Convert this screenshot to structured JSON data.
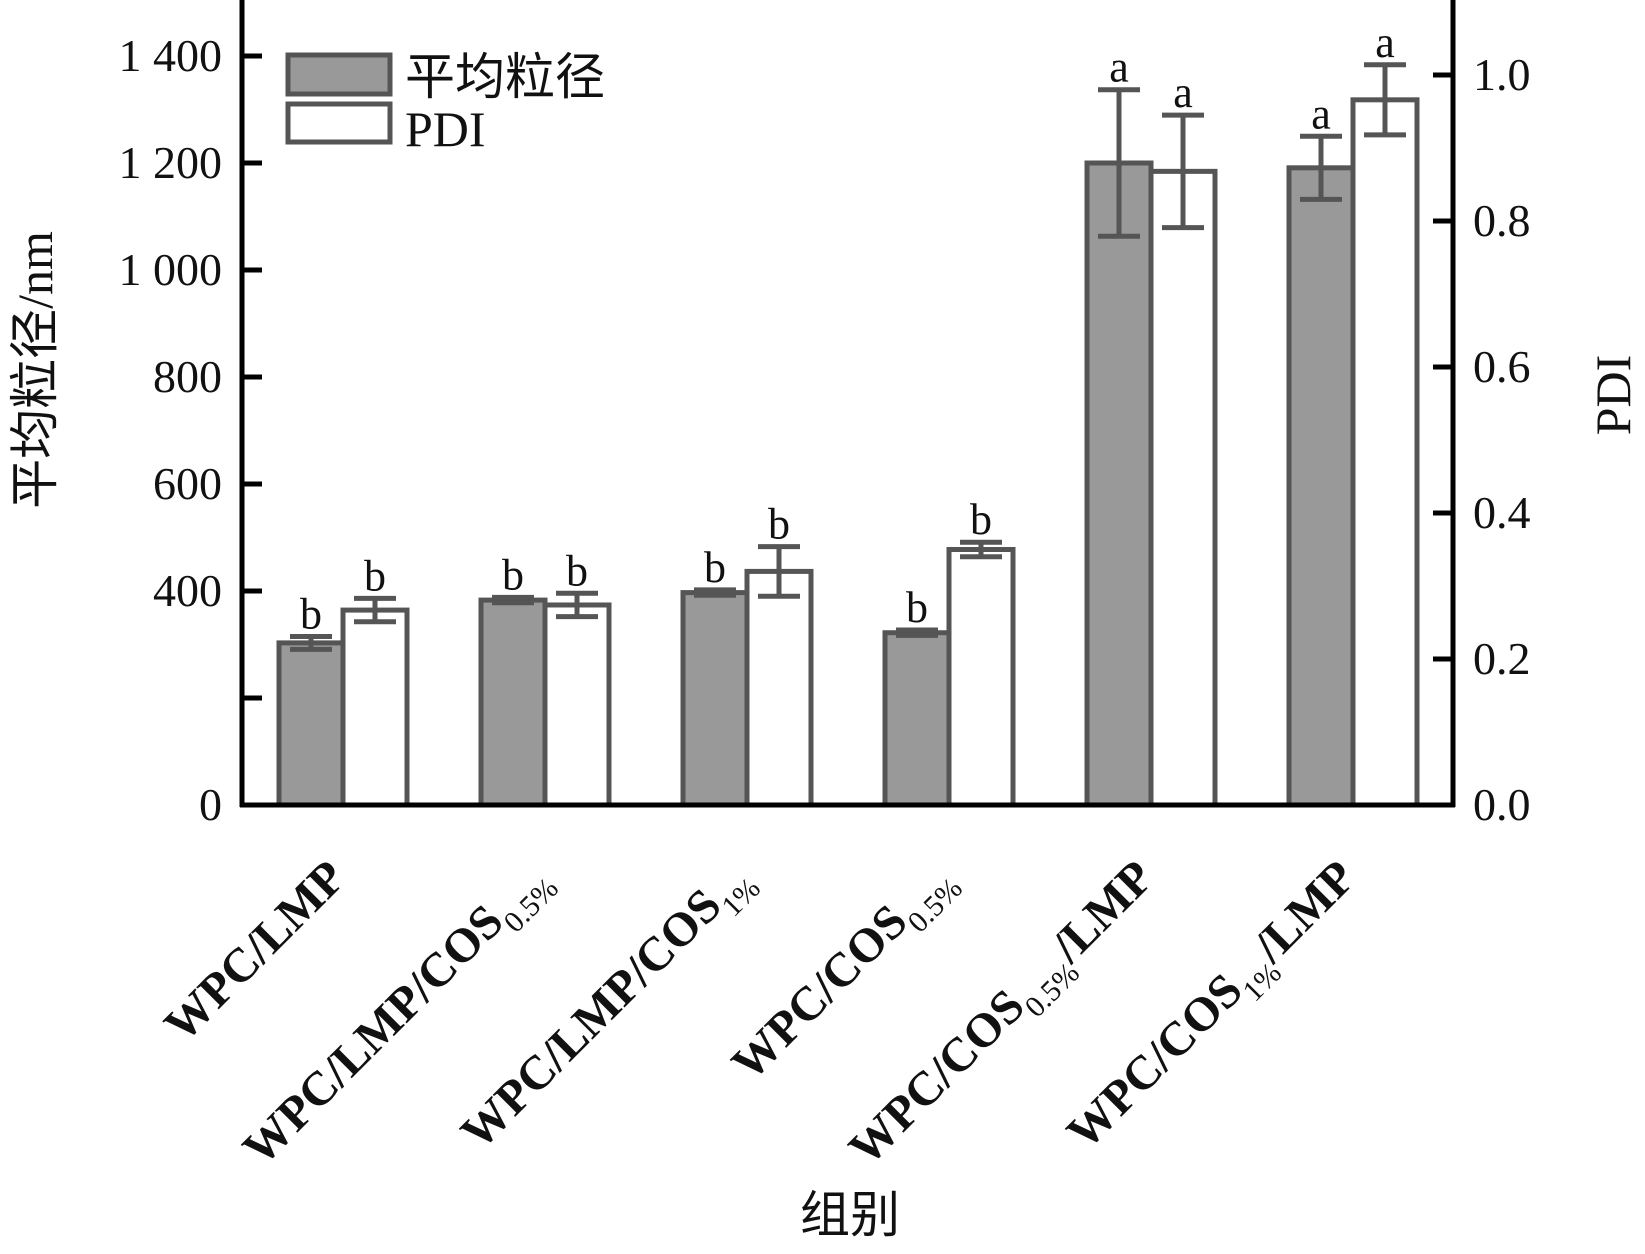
{
  "chart_data": {
    "type": "bar",
    "categories": [
      {
        "main": "WPC/LMP",
        "sub": "",
        "suffix": ""
      },
      {
        "main": "WPC/LMP/COS",
        "sub": "0.5%",
        "suffix": ""
      },
      {
        "main": "WPC/LMP/COS",
        "sub": "1%",
        "suffix": ""
      },
      {
        "main": "WPC/COS",
        "sub": "0.5%",
        "suffix": ""
      },
      {
        "main": "WPC/COS",
        "sub": "0.5%",
        "suffix": "/LMP"
      },
      {
        "main": "WPC/COS",
        "sub": "1%",
        "suffix": "/LMP"
      }
    ],
    "xlabel": "组别",
    "ylabel_left": "平均粒径/nm",
    "ylabel_right": "PDI",
    "ylim_left": [
      0,
      1500
    ],
    "ylim_right": [
      0,
      1.1
    ],
    "yticks_left": [
      {
        "value": 0,
        "label": "0"
      },
      {
        "value": 200,
        "label": ""
      },
      {
        "value": 400,
        "label": "400"
      },
      {
        "value": 600,
        "label": "600"
      },
      {
        "value": 800,
        "label": "800"
      },
      {
        "value": 1000,
        "label": "1 000"
      },
      {
        "value": 1200,
        "label": "1 200"
      },
      {
        "value": 1400,
        "label": "1 400"
      }
    ],
    "yticks_right": [
      {
        "value": 0,
        "label": "0.0"
      },
      {
        "value": 0.2,
        "label": "0.2"
      },
      {
        "value": 0.4,
        "label": "0.4"
      },
      {
        "value": 0.6,
        "label": "0.6"
      },
      {
        "value": 0.8,
        "label": "0.8"
      },
      {
        "value": 1.0,
        "label": "1.0"
      }
    ],
    "grid": false,
    "legend_position": "top-left",
    "series": [
      {
        "name": "平均粒径",
        "axis": "left",
        "color": "#999999",
        "edge": "#555555",
        "values": [
          303,
          383,
          397,
          322,
          1200,
          1191
        ],
        "errors": [
          12,
          5,
          5,
          5,
          137,
          59
        ],
        "letters": [
          "b",
          "b",
          "b",
          "b",
          "a",
          "a"
        ]
      },
      {
        "name": "PDI",
        "axis": "right",
        "color": "#ffffff",
        "edge": "#555555",
        "values": [
          0.267,
          0.274,
          0.32,
          0.35,
          0.868,
          0.966
        ],
        "errors": [
          0.016,
          0.016,
          0.034,
          0.01,
          0.077,
          0.048
        ],
        "letters": [
          "b",
          "b",
          "b",
          "b",
          "a",
          "a"
        ]
      }
    ]
  }
}
